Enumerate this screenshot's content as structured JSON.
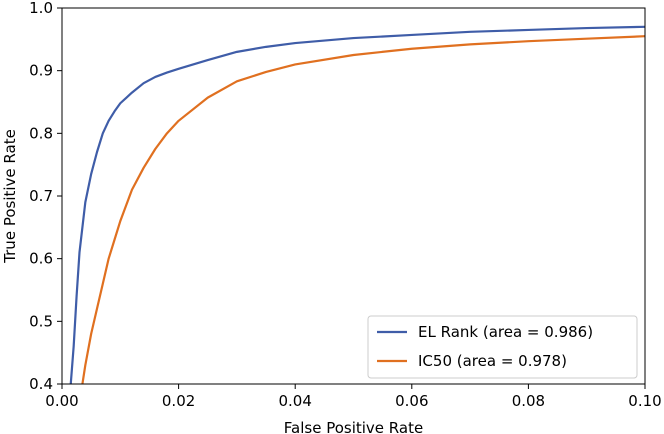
{
  "chart_data": {
    "type": "line",
    "title": "",
    "xlabel": "False Positive Rate",
    "ylabel": "True Positive Rate",
    "xlim": [
      0.0,
      0.1
    ],
    "ylim": [
      0.4,
      1.0
    ],
    "x_ticks": [
      "0.00",
      "0.02",
      "0.04",
      "0.06",
      "0.08",
      "0.10"
    ],
    "x_tick_values": [
      0.0,
      0.02,
      0.04,
      0.06,
      0.08,
      0.1
    ],
    "y_ticks": [
      "0.4",
      "0.5",
      "0.6",
      "0.7",
      "0.8",
      "0.9",
      "1.0"
    ],
    "y_tick_values": [
      0.4,
      0.5,
      0.6,
      0.7,
      0.8,
      0.9,
      1.0
    ],
    "grid": false,
    "legend_position": "bottom-right",
    "series": [
      {
        "name": "EL Rank (area = 0.986)",
        "color": "#3f5da8",
        "x": [
          0.0015,
          0.002,
          0.0025,
          0.003,
          0.004,
          0.005,
          0.006,
          0.007,
          0.008,
          0.009,
          0.01,
          0.012,
          0.014,
          0.016,
          0.018,
          0.02,
          0.025,
          0.03,
          0.035,
          0.04,
          0.05,
          0.06,
          0.07,
          0.08,
          0.09,
          0.1
        ],
        "y": [
          0.4,
          0.46,
          0.54,
          0.61,
          0.69,
          0.735,
          0.77,
          0.8,
          0.82,
          0.835,
          0.848,
          0.865,
          0.88,
          0.89,
          0.897,
          0.903,
          0.917,
          0.93,
          0.938,
          0.944,
          0.952,
          0.957,
          0.962,
          0.965,
          0.968,
          0.97
        ]
      },
      {
        "name": "IC50 (area = 0.978)",
        "color": "#e07020",
        "x": [
          0.0035,
          0.004,
          0.005,
          0.006,
          0.007,
          0.008,
          0.009,
          0.01,
          0.012,
          0.014,
          0.016,
          0.018,
          0.02,
          0.025,
          0.03,
          0.035,
          0.04,
          0.05,
          0.06,
          0.07,
          0.08,
          0.09,
          0.1
        ],
        "y": [
          0.4,
          0.43,
          0.48,
          0.52,
          0.56,
          0.6,
          0.63,
          0.66,
          0.71,
          0.745,
          0.775,
          0.8,
          0.82,
          0.857,
          0.883,
          0.898,
          0.91,
          0.925,
          0.935,
          0.942,
          0.947,
          0.951,
          0.955
        ]
      }
    ]
  }
}
